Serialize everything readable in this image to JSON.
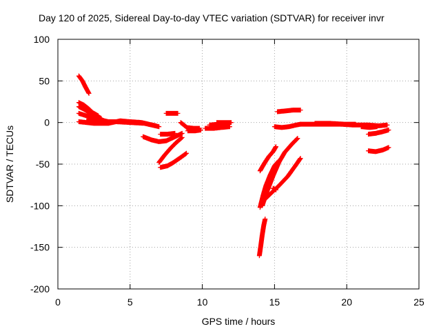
{
  "chart_data": {
    "type": "scatter",
    "title": "Day 120 of 2025, Sidereal Day-to-day VTEC variation (SDTVAR) for receiver invr",
    "xlabel": "GPS time / hours",
    "ylabel": "SDTVAR / TECUs",
    "xlim": [
      0,
      25
    ],
    "ylim": [
      -200,
      100
    ],
    "x_ticks": [
      0,
      5,
      10,
      15,
      20,
      25
    ],
    "y_ticks": [
      -200,
      -150,
      -100,
      -50,
      0,
      50,
      100
    ],
    "x_tick_labels": [
      "0",
      "5",
      "10",
      "15",
      "20",
      "25"
    ],
    "y_tick_labels": [
      "-200",
      "-150",
      "-100",
      "-50",
      "0",
      "50",
      "100"
    ],
    "grid": true,
    "marker": "+",
    "series_color": "#ff0000",
    "segments": [
      [
        [
          1.45,
          56
        ],
        [
          1.7,
          50
        ],
        [
          1.9,
          43
        ],
        [
          2.15,
          35
        ]
      ],
      [
        [
          1.45,
          24
        ],
        [
          1.8,
          21
        ],
        [
          2.1,
          17
        ],
        [
          2.4,
          12
        ],
        [
          2.8,
          8
        ]
      ],
      [
        [
          1.45,
          19
        ],
        [
          1.8,
          16
        ],
        [
          2.2,
          12
        ],
        [
          2.6,
          8
        ],
        [
          3.0,
          5
        ]
      ],
      [
        [
          1.45,
          11
        ],
        [
          2.0,
          8
        ],
        [
          2.5,
          5
        ],
        [
          3.0,
          3
        ],
        [
          3.5,
          1
        ]
      ],
      [
        [
          1.45,
          1
        ],
        [
          2.5,
          -1
        ],
        [
          3.5,
          -1
        ],
        [
          4.3,
          2
        ],
        [
          5.0,
          1
        ],
        [
          5.8,
          0
        ],
        [
          6.5,
          -3
        ],
        [
          7.0,
          -5
        ]
      ],
      [
        [
          2.0,
          2
        ],
        [
          3.0,
          1
        ],
        [
          4.0,
          1
        ],
        [
          5.0,
          0
        ],
        [
          6.0,
          -1
        ],
        [
          6.8,
          -4
        ]
      ],
      [
        [
          5.9,
          -17
        ],
        [
          6.5,
          -21
        ],
        [
          7.0,
          -23
        ],
        [
          7.5,
          -22
        ],
        [
          8.0,
          -18
        ],
        [
          8.6,
          -13
        ]
      ],
      [
        [
          7.1,
          -14
        ],
        [
          7.6,
          -14
        ],
        [
          8.1,
          -13
        ]
      ],
      [
        [
          7.0,
          -48
        ],
        [
          7.4,
          -39
        ],
        [
          7.8,
          -31
        ],
        [
          8.2,
          -24
        ],
        [
          8.6,
          -18
        ]
      ],
      [
        [
          7.1,
          -54
        ],
        [
          7.6,
          -52
        ],
        [
          8.0,
          -48
        ],
        [
          8.5,
          -42
        ],
        [
          8.9,
          -37
        ]
      ],
      [
        [
          7.5,
          11
        ],
        [
          7.9,
          11
        ],
        [
          8.3,
          11
        ]
      ],
      [
        [
          8.5,
          0
        ],
        [
          8.8,
          -4
        ],
        [
          9.0,
          -7
        ],
        [
          9.2,
          -9
        ]
      ],
      [
        [
          8.9,
          -6
        ],
        [
          9.4,
          -7
        ],
        [
          9.8,
          -7
        ]
      ],
      [
        [
          9.0,
          -10
        ],
        [
          9.5,
          -10
        ],
        [
          9.9,
          -9
        ]
      ],
      [
        [
          10.2,
          -7
        ],
        [
          10.8,
          -7
        ],
        [
          11.3,
          -6
        ],
        [
          11.9,
          -5
        ]
      ],
      [
        [
          10.5,
          -3
        ],
        [
          11.2,
          -2
        ],
        [
          11.8,
          -2
        ]
      ],
      [
        [
          11.0,
          0
        ],
        [
          11.6,
          0
        ],
        [
          12.0,
          0
        ]
      ],
      [
        [
          14.0,
          -102
        ],
        [
          14.2,
          -88
        ],
        [
          14.4,
          -76
        ],
        [
          14.7,
          -63
        ],
        [
          15.0,
          -52
        ],
        [
          15.3,
          -46
        ]
      ],
      [
        [
          14.15,
          -100
        ],
        [
          14.5,
          -82
        ],
        [
          14.9,
          -64
        ],
        [
          15.3,
          -48
        ],
        [
          15.7,
          -36
        ],
        [
          16.2,
          -26
        ],
        [
          16.6,
          -19
        ]
      ],
      [
        [
          14.1,
          -96
        ],
        [
          14.7,
          -86
        ],
        [
          15.3,
          -76
        ],
        [
          15.9,
          -65
        ],
        [
          16.4,
          -53
        ],
        [
          16.8,
          -43
        ]
      ],
      [
        [
          14.0,
          -58
        ],
        [
          14.3,
          -49
        ],
        [
          14.6,
          -41
        ],
        [
          14.9,
          -35
        ],
        [
          15.1,
          -29
        ]
      ],
      [
        [
          14.9,
          -79
        ],
        [
          15.1,
          -81
        ]
      ],
      [
        [
          13.95,
          -160
        ],
        [
          14.05,
          -148
        ],
        [
          14.15,
          -135
        ],
        [
          14.25,
          -124
        ],
        [
          14.35,
          -116
        ]
      ],
      [
        [
          15.2,
          13
        ],
        [
          15.8,
          14
        ],
        [
          16.3,
          15
        ],
        [
          16.8,
          15
        ]
      ],
      [
        [
          15.0,
          -5
        ],
        [
          15.5,
          -6
        ],
        [
          16.0,
          -5
        ],
        [
          16.5,
          -3
        ],
        [
          16.8,
          -2
        ]
      ],
      [
        [
          16.8,
          -2
        ],
        [
          17.5,
          -2
        ],
        [
          18.5,
          -2
        ],
        [
          19.5,
          -2
        ],
        [
          20.5,
          -3
        ],
        [
          21.5,
          -3
        ],
        [
          22.2,
          -4
        ],
        [
          22.8,
          -3
        ]
      ],
      [
        [
          17.8,
          -1
        ],
        [
          18.8,
          -1
        ],
        [
          19.8,
          -2
        ],
        [
          20.6,
          -2
        ]
      ],
      [
        [
          21.0,
          -5
        ],
        [
          21.6,
          -6
        ],
        [
          22.1,
          -5
        ]
      ],
      [
        [
          21.5,
          -14
        ],
        [
          22.0,
          -13
        ],
        [
          22.5,
          -11
        ],
        [
          22.9,
          -9
        ]
      ],
      [
        [
          21.5,
          -34
        ],
        [
          22.0,
          -35
        ],
        [
          22.5,
          -33
        ],
        [
          22.9,
          -30
        ]
      ]
    ]
  }
}
